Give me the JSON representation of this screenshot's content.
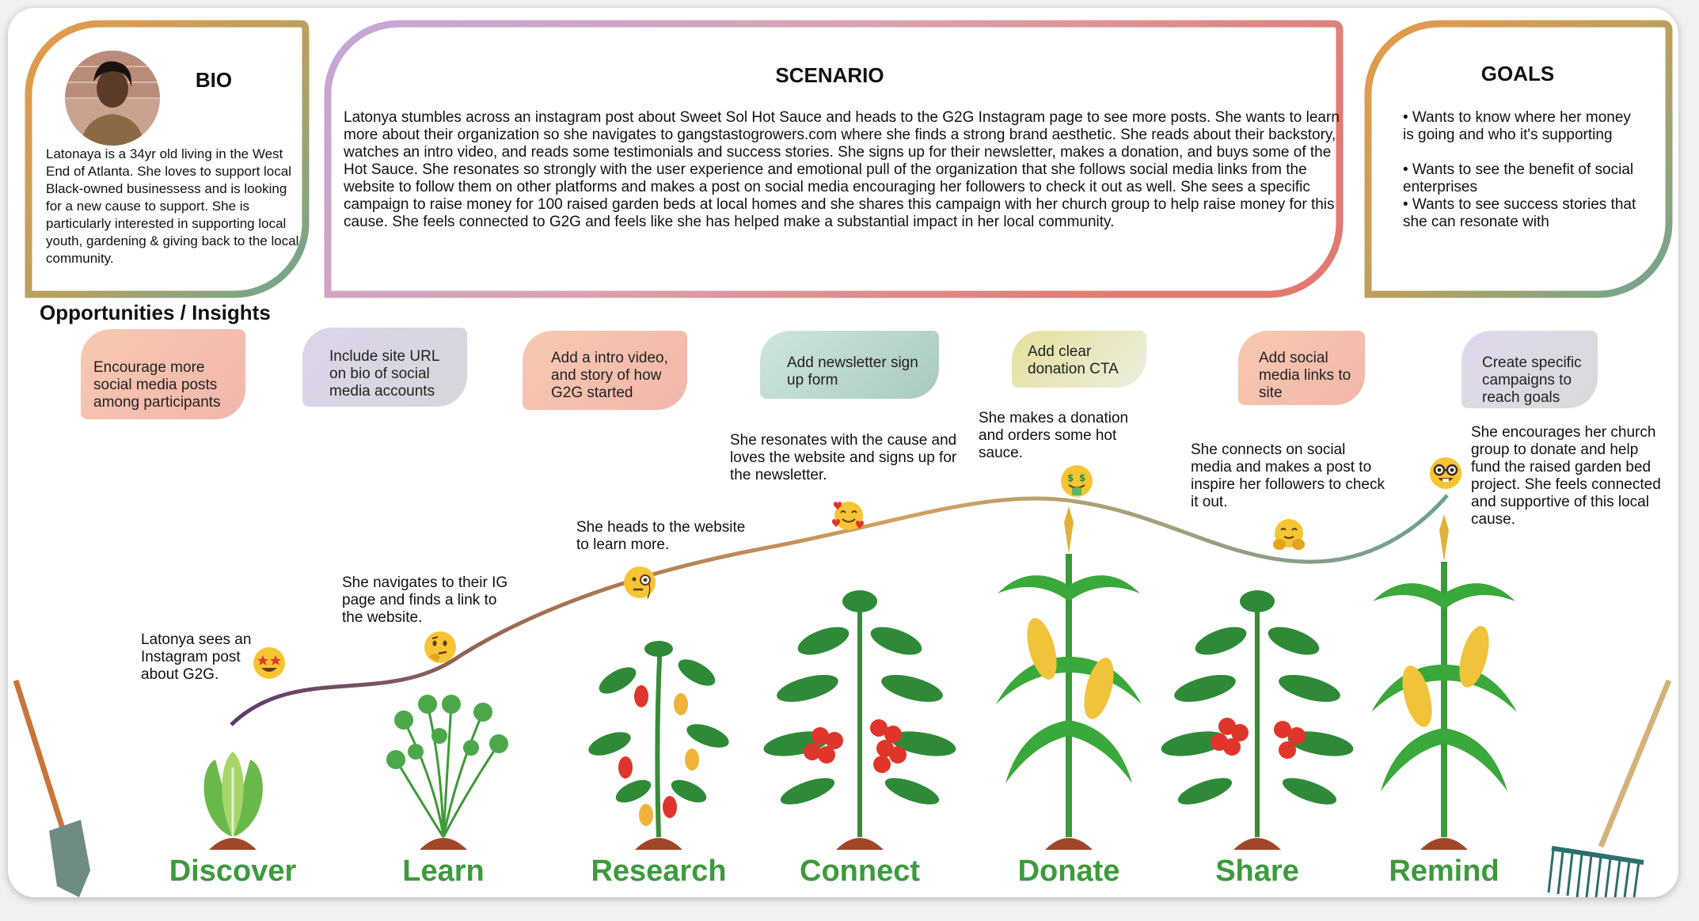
{
  "bio": {
    "title": "BIO",
    "text": "Latonaya is a 34yr old living in the West End of Atlanta. She loves to support local Black-owned businessess and is looking for a new cause to support. She is particularly interested in supporting local youth, gardening & giving back to the local community."
  },
  "scenario": {
    "title": "SCENARIO",
    "text": "Latonya stumbles across an instagram post about Sweet Sol Hot Sauce and heads to the G2G Instagram page to see more posts. She wants to learn more about their organization so she navigates to gangstastogrowers.com where she finds a strong brand aesthetic. She reads about their backstory, watches an intro video, and reads some testimonials and success stories. She signs up for their newsletter, makes a donation, and buys some of the Hot Sauce. She resonates so strongly with the user experience and emotional pull of the organization that she follows social media links from the website to follow them on other platforms and makes a post on social media encouraging her followers to check it out as well. She sees a specific campaign to raise money for 100 raised garden beds at local homes and she shares this campaign with her church group to help raise money for this cause. She feels connected to G2G and feels like she has helped make a substantial impact in her local community."
  },
  "goals": {
    "title": "GOALS",
    "items": [
      "• Wants to know where her money is going and who it's supporting",
      "• Wants to see the benefit of social enterprises",
      "• Wants to see success stories that she can resonate with"
    ]
  },
  "insights": {
    "title": "Opportunities / Insights",
    "bubbles": [
      "Encourage more social media posts among participants",
      "Include site URL on bio of social media accounts",
      "Add a intro video, and story of how G2G started",
      "Add newsletter sign up form",
      "Add clear donation CTA",
      "Add social media links to site",
      "Create specific campaigns to reach goals"
    ]
  },
  "journey": {
    "steps": [
      "Latonya sees an Instagram post about G2G.",
      "She navigates to their IG page and finds a link to the website.",
      "She heads to the website to learn more.",
      "She resonates with the cause and loves the website and signs up for the newsletter.",
      "She makes a donation and orders some hot sauce.",
      "She connects on social media and makes a post to inspire her followers to check it out.",
      "She encourages her church group to donate and help fund the raised garden bed project. She feels connected and supportive of this local cause."
    ],
    "emotions": [
      "star-struck-emoji",
      "thinking-emoji",
      "monocle-emoji",
      "smiling-hearts-emoji",
      "money-mouth-emoji",
      "hugging-emoji",
      "nerd-emoji"
    ],
    "stages": [
      "Discover",
      "Learn",
      "Research",
      "Connect",
      "Donate",
      "Share",
      "Remind"
    ]
  },
  "colors": {
    "stage_green": "#3d9a3d",
    "curve_start": "#5a3a6e",
    "curve_mid": "#c8975a",
    "curve_end": "#6a9f95",
    "soil": "#a0472b"
  }
}
